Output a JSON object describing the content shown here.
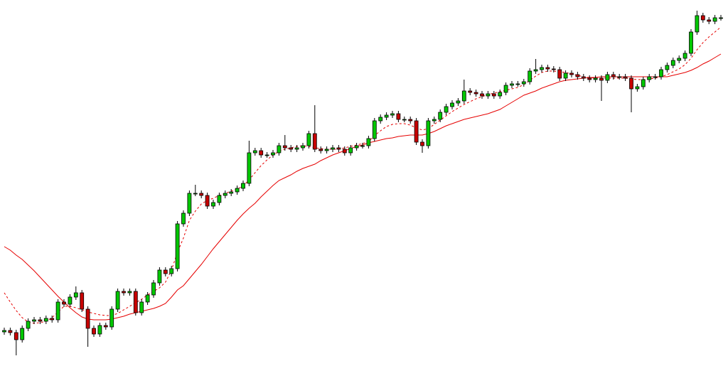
{
  "chart_data": {
    "type": "candlestick",
    "ylim": [
      0,
      515
    ],
    "up_color": "#00c800",
    "down_color": "#c80000",
    "outline_color": "#000000",
    "open": [
      48,
      50,
      47,
      37,
      53,
      63,
      65,
      63,
      67,
      65,
      90,
      87,
      97,
      103,
      80,
      53,
      45,
      57,
      55,
      80,
      105,
      103,
      105,
      75,
      90,
      100,
      117,
      135,
      130,
      137,
      200,
      215,
      243,
      243,
      240,
      225,
      230,
      240,
      243,
      245,
      250,
      257,
      300,
      303,
      297,
      297,
      300,
      310,
      307,
      305,
      307,
      310,
      327,
      305,
      303,
      305,
      307,
      305,
      300,
      307,
      310,
      310,
      320,
      345,
      350,
      353,
      355,
      347,
      347,
      345,
      315,
      310,
      345,
      347,
      357,
      365,
      370,
      373,
      387,
      385,
      383,
      380,
      383,
      380,
      385,
      395,
      397,
      397,
      400,
      415,
      417,
      420,
      418,
      417,
      405,
      412,
      410,
      407,
      405,
      403,
      405,
      402,
      410,
      407,
      407,
      405,
      390,
      393,
      403,
      407,
      407,
      417,
      423,
      430,
      433,
      440,
      470,
      493,
      487,
      485,
      490
    ],
    "high": [
      54,
      54,
      51,
      57,
      67,
      69,
      69,
      71,
      71,
      94,
      94,
      101,
      112,
      107,
      84,
      57,
      61,
      61,
      84,
      109,
      109,
      109,
      109,
      94,
      104,
      121,
      139,
      139,
      141,
      204,
      219,
      247,
      255,
      247,
      244,
      234,
      244,
      247,
      249,
      254,
      261,
      317,
      307,
      307,
      301,
      304,
      314,
      325,
      311,
      311,
      314,
      331,
      367,
      309,
      309,
      311,
      311,
      309,
      311,
      314,
      314,
      324,
      349,
      354,
      357,
      359,
      359,
      351,
      351,
      349,
      319,
      349,
      351,
      361,
      369,
      374,
      377,
      403,
      391,
      389,
      387,
      387,
      387,
      389,
      399,
      401,
      401,
      404,
      419,
      432,
      424,
      424,
      422,
      421,
      416,
      416,
      414,
      411,
      409,
      409,
      409,
      414,
      414,
      411,
      411,
      409,
      397,
      407,
      411,
      411,
      421,
      427,
      434,
      437,
      444,
      474,
      500,
      497,
      491,
      494,
      494
    ],
    "low": [
      44,
      43,
      15,
      33,
      49,
      59,
      59,
      59,
      61,
      61,
      83,
      83,
      93,
      76,
      27,
      41,
      41,
      51,
      51,
      76,
      99,
      99,
      71,
      71,
      86,
      96,
      113,
      126,
      126,
      133,
      196,
      211,
      239,
      236,
      221,
      221,
      226,
      236,
      239,
      241,
      246,
      253,
      296,
      293,
      293,
      293,
      296,
      303,
      301,
      301,
      303,
      306,
      301,
      299,
      299,
      301,
      301,
      296,
      296,
      303,
      306,
      306,
      316,
      341,
      346,
      349,
      343,
      343,
      341,
      311,
      300,
      306,
      341,
      343,
      353,
      361,
      366,
      369,
      381,
      379,
      376,
      376,
      376,
      376,
      381,
      391,
      393,
      393,
      396,
      411,
      413,
      414,
      413,
      401,
      401,
      406,
      403,
      401,
      399,
      399,
      373,
      398,
      403,
      403,
      401,
      357,
      386,
      389,
      399,
      403,
      403,
      413,
      419,
      426,
      429,
      436,
      466,
      483,
      481,
      481,
      486
    ],
    "close": [
      50,
      47,
      37,
      53,
      63,
      65,
      63,
      67,
      65,
      90,
      87,
      97,
      103,
      80,
      53,
      45,
      57,
      55,
      80,
      105,
      103,
      105,
      75,
      90,
      100,
      117,
      135,
      130,
      137,
      200,
      215,
      243,
      243,
      240,
      225,
      230,
      240,
      243,
      245,
      250,
      257,
      300,
      303,
      297,
      297,
      300,
      310,
      307,
      305,
      307,
      310,
      327,
      305,
      303,
      305,
      307,
      305,
      300,
      307,
      310,
      310,
      320,
      345,
      350,
      353,
      355,
      347,
      347,
      345,
      315,
      310,
      345,
      347,
      357,
      365,
      370,
      373,
      387,
      385,
      383,
      380,
      383,
      380,
      385,
      395,
      397,
      397,
      400,
      415,
      417,
      420,
      418,
      417,
      405,
      412,
      410,
      407,
      405,
      403,
      405,
      402,
      410,
      407,
      407,
      405,
      390,
      393,
      403,
      407,
      407,
      417,
      423,
      430,
      433,
      440,
      470,
      493,
      487,
      485,
      490,
      490
    ],
    "moving_averages": [
      {
        "color": "#e60000",
        "style": "dashed",
        "values": [
          103,
          90,
          78,
          68,
          62,
          60,
          61,
          63,
          68,
          76,
          84,
          84,
          82,
          79,
          76,
          74,
          72,
          71,
          71,
          74,
          79,
          84,
          89,
          94,
          100,
          105,
          110,
          118,
          135,
          160,
          180,
          205,
          218,
          228,
          233,
          236,
          240,
          243,
          246,
          249,
          253,
          262,
          272,
          282,
          290,
          297,
          302,
          305,
          307,
          309,
          310,
          309,
          307,
          306,
          305,
          305,
          305,
          307,
          309,
          311,
          313,
          316,
          324,
          331,
          337,
          340,
          341,
          341,
          339,
          335,
          332,
          334,
          340,
          346,
          352,
          358,
          363,
          368,
          372,
          376,
          379,
          382,
          384,
          386,
          388,
          390,
          392,
          396,
          402,
          408,
          413,
          415,
          415,
          414,
          413,
          411,
          409,
          407,
          406,
          405,
          405,
          405,
          405,
          405,
          405,
          404,
          403,
          403,
          404,
          405,
          407,
          410,
          414,
          418,
          424,
          433,
          445,
          455,
          463,
          470,
          477
        ]
      },
      {
        "color": "#e60000",
        "style": "solid",
        "values": [
          168,
          163,
          156,
          150,
          142,
          134,
          125,
          116,
          107,
          98,
          90,
          82,
          75,
          69,
          66,
          65,
          65,
          65,
          66,
          68,
          70,
          73,
          75,
          77,
          79,
          81,
          84,
          88,
          97,
          107,
          113,
          123,
          133,
          143,
          154,
          165,
          175,
          185,
          195,
          205,
          214,
          222,
          229,
          238,
          246,
          254,
          261,
          265,
          269,
          274,
          278,
          281,
          284,
          289,
          293,
          297,
          300,
          303,
          306,
          309,
          311,
          314,
          316,
          318,
          320,
          321,
          323,
          324,
          325,
          325,
          325,
          327,
          330,
          334,
          338,
          341,
          344,
          347,
          349,
          351,
          353,
          355,
          358,
          361,
          366,
          371,
          376,
          381,
          384,
          387,
          391,
          394,
          397,
          400,
          402,
          403,
          404,
          405,
          406,
          406,
          407,
          407,
          407,
          407,
          407,
          407,
          407,
          407,
          407,
          407,
          407,
          407,
          409,
          411,
          413,
          416,
          420,
          425,
          429,
          434,
          439
        ]
      }
    ]
  }
}
